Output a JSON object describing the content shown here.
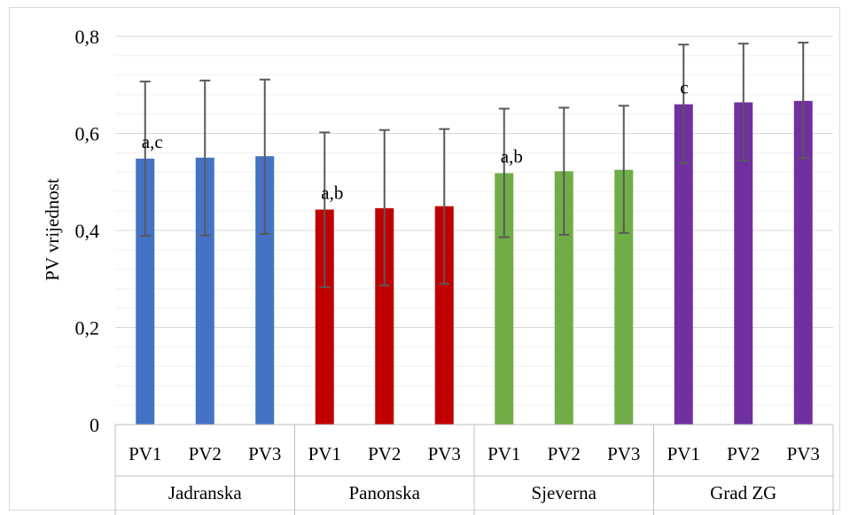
{
  "chart_data": {
    "type": "bar",
    "title": "",
    "ylabel": "PV vrijednost",
    "xlabel": "",
    "ylim": [
      0,
      0.8
    ],
    "yticks": [
      0,
      0.2,
      0.4,
      0.6,
      0.8
    ],
    "ytick_labels": [
      "0",
      "0,2",
      "0,4",
      "0,6",
      "0,8"
    ],
    "grid": true,
    "minor_grid": true,
    "groups": [
      {
        "name": "Jadranska",
        "color": "#4472c4",
        "categories": [
          "PV1",
          "PV2",
          "PV3"
        ],
        "values": [
          0.548,
          0.55,
          0.553
        ],
        "err_low": [
          0.389,
          0.39,
          0.393
        ],
        "err_high": [
          0.707,
          0.709,
          0.711
        ],
        "annotation": "a,c"
      },
      {
        "name": "Panonska",
        "color": "#c00000",
        "categories": [
          "PV1",
          "PV2",
          "PV3"
        ],
        "values": [
          0.443,
          0.446,
          0.45
        ],
        "err_low": [
          0.283,
          0.287,
          0.29
        ],
        "err_high": [
          0.602,
          0.607,
          0.609
        ],
        "annotation": "a,b"
      },
      {
        "name": "Sjeverna",
        "color": "#70ad47",
        "categories": [
          "PV1",
          "PV2",
          "PV3"
        ],
        "values": [
          0.518,
          0.522,
          0.525
        ],
        "err_low": [
          0.386,
          0.391,
          0.395
        ],
        "err_high": [
          0.651,
          0.653,
          0.657
        ],
        "annotation": "a,b"
      },
      {
        "name": "Grad ZG",
        "color": "#7030a0",
        "categories": [
          "PV1",
          "PV2",
          "PV3"
        ],
        "values": [
          0.66,
          0.664,
          0.667
        ],
        "err_low": [
          0.539,
          0.544,
          0.549
        ],
        "err_high": [
          0.783,
          0.785,
          0.787
        ],
        "annotation": "c"
      }
    ]
  }
}
